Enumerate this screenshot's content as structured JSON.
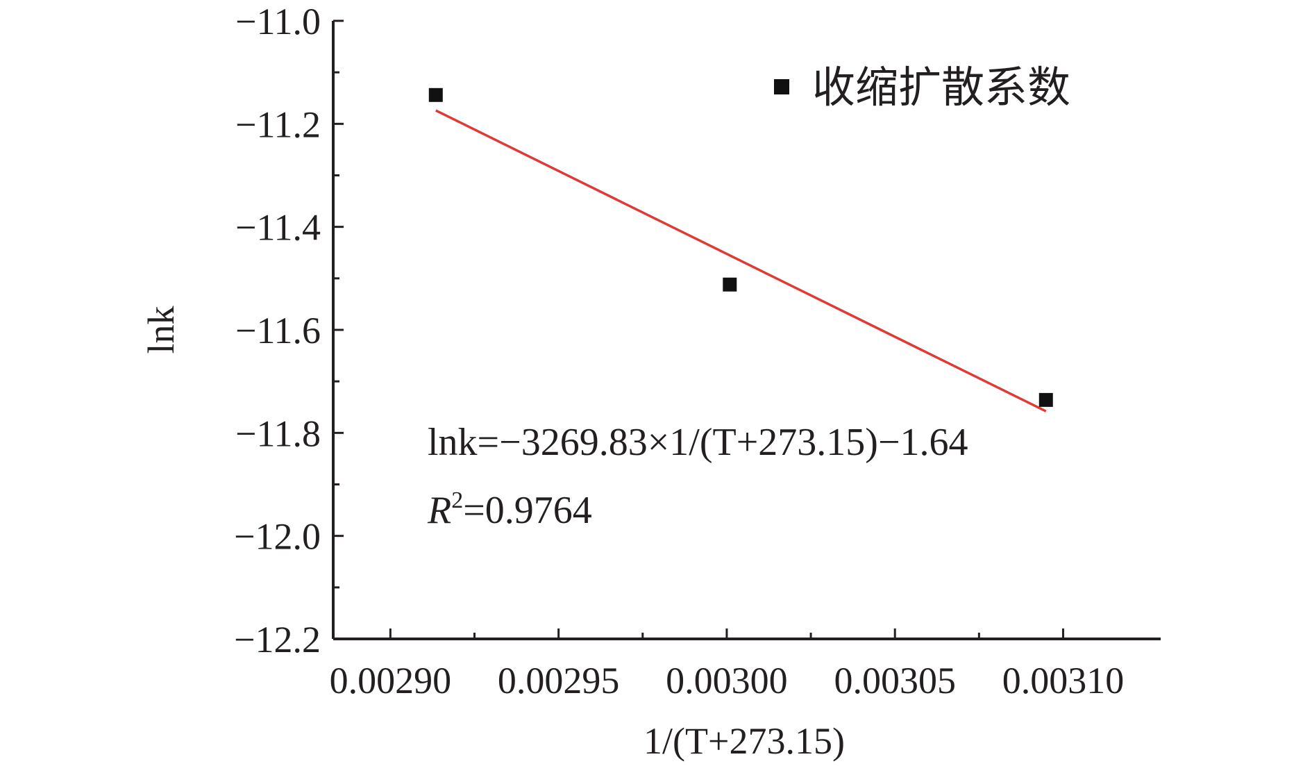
{
  "chart_data": {
    "type": "scatter",
    "xlabel": "1/(T+273.15)",
    "ylabel": "lnk",
    "xlim": [
      0.002883,
      0.003129
    ],
    "ylim": [
      -12.2,
      -11.0
    ],
    "x_ticks": [
      0.0029,
      0.00295,
      0.003,
      0.00305,
      0.0031
    ],
    "x_tick_labels": [
      "0.00290",
      "0.00295",
      "0.00300",
      "0.00305",
      "0.00310"
    ],
    "x_minor_ticks": [
      0.002925,
      0.002975,
      0.003025,
      0.003075
    ],
    "y_ticks": [
      -11.0,
      -11.2,
      -11.4,
      -11.6,
      -11.8,
      -12.0,
      -12.2
    ],
    "y_tick_labels": [
      "−11.0",
      "−11.2",
      "−11.4",
      "−11.6",
      "−11.8",
      "−12.0",
      "−12.2"
    ],
    "y_minor_ticks": [
      -11.1,
      -11.3,
      -11.5,
      -11.7,
      -11.9,
      -12.1
    ],
    "grid": false,
    "series": [
      {
        "name": "收缩扩散系数",
        "marker": "square",
        "color": "#111111",
        "x": [
          0.0029135,
          0.0030009,
          0.0030949
        ],
        "y": [
          -11.144,
          -11.512,
          -11.736
        ]
      }
    ],
    "fit_line": {
      "color": "#e03a36",
      "x": [
        0.0029135,
        0.0030949
      ],
      "y": [
        -11.174,
        -11.758
      ]
    },
    "legend": {
      "position": "top-right",
      "label": "收缩扩散系数"
    },
    "annotations": {
      "equation": "lnk=−3269.83×1/(T+273.15)−1.64",
      "r2_symbol": "R",
      "r2_superscript": "2",
      "r2_value": "=0.9764"
    },
    "colors": {
      "axis": "#231f20",
      "marker": "#111111",
      "fit": "#e03a36"
    }
  }
}
